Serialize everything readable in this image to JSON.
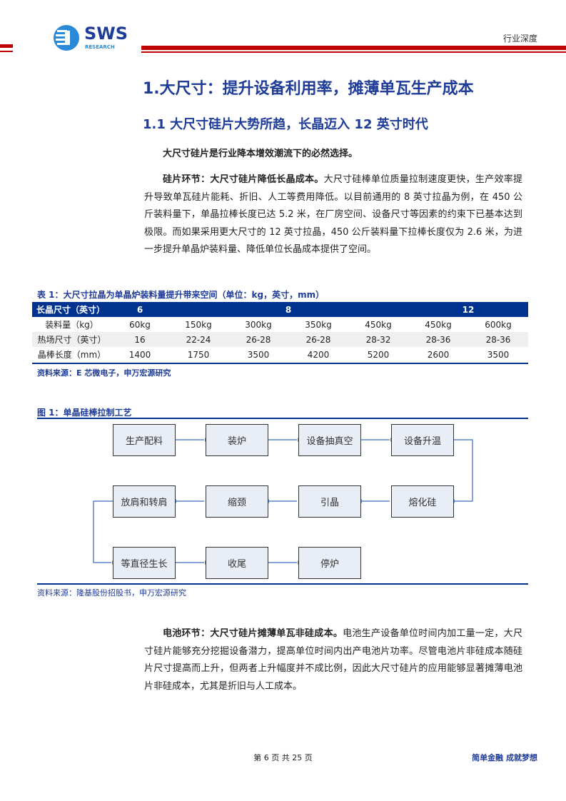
{
  "header": {
    "logo_text": "SWS",
    "logo_sub": "RESEARCH",
    "category": "行业深度"
  },
  "h1": "1.大尺寸：提升设备利用率，摊薄单瓦生产成本",
  "h2": "1.1 大尺寸硅片大势所趋，长晶迈入 12 英寸时代",
  "p1": "大尺寸硅片是行业降本增效潮流下的必然选择。",
  "p2_bold": "硅片环节：大尺寸硅片降低长晶成本。",
  "p2": "大尺寸硅棒单位质量拉制速度更快，生产效率提升导致单瓦硅片能耗、折旧、人工等费用降低。以目前通用的 8 英寸拉晶为例，在 450 公斤装料量下，单晶拉棒长度已达 5.2 米，在厂房空间、设备尺寸等因素的约束下已基本达到极限。而如果采用更大尺寸的 12 英寸拉晶，450 公斤装料量下拉棒长度仅为 2.6 米，为进一步提升单晶炉装料量、降低单位长晶成本提供了空间。",
  "table": {
    "caption": "表 1：大尺寸拉晶为单晶炉装料量提升带来空间（单位：kg，英寸，mm）",
    "header": [
      "长晶尺寸（英寸）",
      "6",
      "8",
      "12"
    ],
    "rows": [
      [
        "装料量（kg）",
        "60kg",
        "150kg",
        "300kg",
        "350kg",
        "450kg",
        "450kg",
        "600kg"
      ],
      [
        "热场尺寸（英寸）",
        "16",
        "22-24",
        "26-28",
        "26-28",
        "28-32",
        "28-36",
        "28-36"
      ],
      [
        "晶棒长度（mm）",
        "1400",
        "1750",
        "3500",
        "4200",
        "5200",
        "2600",
        "3500"
      ]
    ],
    "source": "资料来源：E 芯微电子，申万宏源研究"
  },
  "figure": {
    "caption": "图 1：单晶硅棒拉制工艺",
    "steps": [
      "生产配料",
      "装炉",
      "设备抽真空",
      "设备升温",
      "熔化硅",
      "引晶",
      "缩颈",
      "放肩和转肩",
      "等直径生长",
      "收尾",
      "停炉"
    ],
    "source": "资料来源：隆基股份招股书，申万宏源研究"
  },
  "p3_bold": "电池环节：大尺寸硅片摊薄单瓦非硅成本。",
  "p3": "电池生产设备单位时间内加工量一定，大尺寸硅片能够充分挖掘设备潜力，提高单位时间内出产电池片功率。尽管电池片非硅成本随硅片尺寸提高而上升，但两者上升幅度并不成比例，因此大尺寸硅片的应用能够显著摊薄电池片非硅成本，尤其是折旧与人工成本。",
  "footer": {
    "page": "第 6 页 共 25 页",
    "slogan": "简单金融 成就梦想"
  },
  "colors": {
    "brand_blue": "#1f3c99",
    "header_red": "#c00000",
    "table_header": "#00338f"
  }
}
